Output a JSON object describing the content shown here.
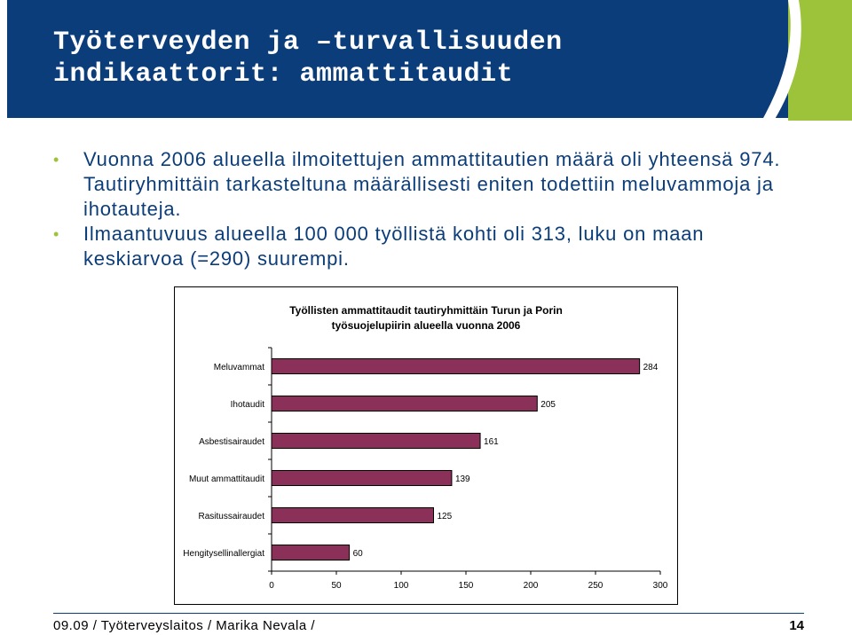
{
  "slide": {
    "title_line1": "Työterveyden ja –turvallisuuden",
    "title_line2": "indikaattorit: ammattitaudit",
    "bullets": [
      "Vuonna 2006 alueella ilmoitettujen ammattitautien määrä oli yhteensä 974. Tautiryhmittäin tarkasteltuna määrällisesti eniten todettiin meluvammoja ja ihotauteja.",
      "Ilmaantuvuus alueella 100 000 työllistä kohti oli 313, luku on maan keskiarvoa (=290) suurempi."
    ],
    "footer": "09.09 / Työterveyslaitos / Marika Nevala /",
    "page_number": "14"
  },
  "colors": {
    "header_blue": "#0b3d7a",
    "accent_green": "#9dc33b",
    "bar_fill": "#8b3058"
  },
  "chart_data": {
    "type": "bar",
    "orientation": "horizontal",
    "title_line1": "Työllisten ammattitaudit tautiryhmittäin Turun ja Porin",
    "title_line2": "työsuojelupiirin alueella vuonna 2006",
    "categories": [
      "Meluvammat",
      "Ihotaudit",
      "Asbestisairaudet",
      "Muut ammattitaudit",
      "Rasitussairaudet",
      "Hengitysellinallergiat"
    ],
    "values": [
      284,
      205,
      161,
      139,
      125,
      60
    ],
    "xlim": [
      0,
      300
    ],
    "xticks": [
      "0",
      "50",
      "100",
      "150",
      "200",
      "250",
      "300"
    ],
    "grid": false,
    "legend": "none"
  }
}
